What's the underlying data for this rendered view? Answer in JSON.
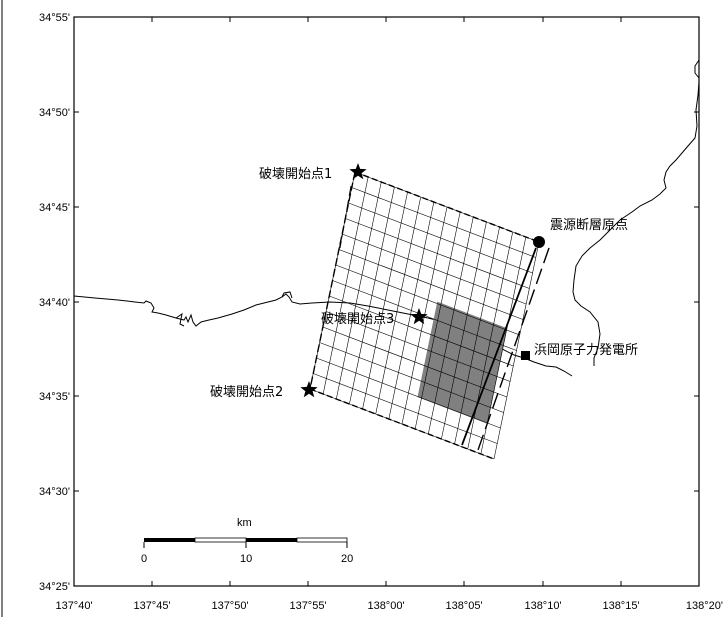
{
  "map": {
    "lat_labels": [
      "34°55'",
      "34°50'",
      "34°45'",
      "34°40'",
      "34°35'",
      "34°30'",
      "34°25'"
    ],
    "lon_labels": [
      "137°40'",
      "137°45'",
      "137°50'",
      "137°55'",
      "138°00'",
      "138°05'",
      "138°10'",
      "138°15'",
      "138°20'"
    ],
    "labels": {
      "start1": "破壊開始点1",
      "start2": "破壊開始点2",
      "start3": "破壊開始点3",
      "origin": "震源断層原点",
      "plant": "浜岡原子力発電所"
    },
    "scale_bar": {
      "unit": "km",
      "ticks": [
        "0",
        "10",
        "20"
      ]
    },
    "colors": {
      "frame": "#000000",
      "asperity": "#808080",
      "grid": "#000000",
      "coast": "#000000"
    }
  }
}
